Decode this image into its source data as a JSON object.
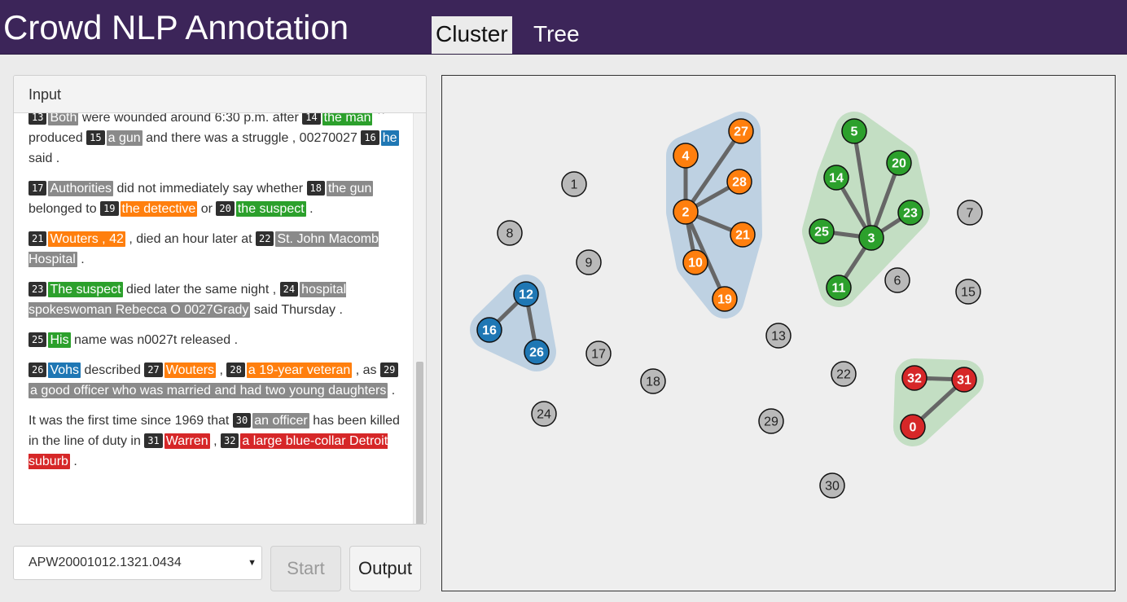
{
  "app": {
    "title": "Crowd NLP Annotation"
  },
  "tabs": [
    {
      "label": "Cluster",
      "active": true
    },
    {
      "label": "Tree",
      "active": false
    }
  ],
  "input_panel": {
    "heading": "Input",
    "paragraphs": [
      [
        {
          "n": "13",
          "t": "Both",
          "c": "gray"
        },
        {
          "s": " were wounded around 6:30 p.m. after "
        },
        {
          "n": "14",
          "t": "the man",
          "c": "green"
        },
        {
          "s": " `` produced "
        },
        {
          "n": "15",
          "t": "a gun",
          "c": "gray"
        },
        {
          "s": " and there was a struggle , 00270027 "
        },
        {
          "n": "16",
          "t": "he",
          "c": "blue"
        },
        {
          "s": " said ."
        }
      ],
      [
        {
          "n": "17",
          "t": "Authorities",
          "c": "gray"
        },
        {
          "s": " did not immediately say whether "
        },
        {
          "n": "18",
          "t": "the gun",
          "c": "gray"
        },
        {
          "s": " belonged to "
        },
        {
          "n": "19",
          "t": "the detective",
          "c": "orange"
        },
        {
          "s": " or "
        },
        {
          "n": "20",
          "t": "the suspect",
          "c": "green"
        },
        {
          "s": " ."
        }
      ],
      [
        {
          "n": "21",
          "t": "Wouters , 42",
          "c": "orange"
        },
        {
          "s": " , died an hour later at "
        },
        {
          "n": "22",
          "t": "St. John Macomb Hospital",
          "c": "gray"
        },
        {
          "s": " ."
        }
      ],
      [
        {
          "n": "23",
          "t": "The suspect",
          "c": "green"
        },
        {
          "s": " died later the same night , "
        },
        {
          "n": "24",
          "t": "hospital spokeswoman Rebecca O 0027Grady",
          "c": "gray"
        },
        {
          "s": " said Thursday ."
        }
      ],
      [
        {
          "n": "25",
          "t": "His",
          "c": "green"
        },
        {
          "s": " name was n0027t released ."
        }
      ],
      [
        {
          "n": "26",
          "t": "Vohs",
          "c": "blue"
        },
        {
          "s": " described "
        },
        {
          "n": "27",
          "t": "Wouters",
          "c": "orange"
        },
        {
          "s": " , "
        },
        {
          "n": "28",
          "t": "a 19-year veteran",
          "c": "orange"
        },
        {
          "s": " , as "
        },
        {
          "n": "29",
          "t": "a good officer who was married and had two young daughters",
          "c": "gray"
        },
        {
          "s": " ."
        }
      ],
      [
        {
          "s": "It was the first time since 1969 that "
        },
        {
          "n": "30",
          "t": "an officer",
          "c": "gray"
        },
        {
          "s": " has been killed in the line of duty in "
        },
        {
          "n": "31",
          "t": "Warren",
          "c": "red"
        },
        {
          "s": " , "
        },
        {
          "n": "32",
          "t": "a large blue-collar Detroit suburb",
          "c": "red"
        },
        {
          "s": " ."
        }
      ]
    ]
  },
  "controls": {
    "document_select": {
      "value": "APW20001012.1321.0434"
    },
    "start_label": "Start",
    "output_label": "Output"
  },
  "colors": {
    "gray": "#8a8a8a",
    "green": "#2ca02c",
    "orange": "#ff7f0e",
    "blue": "#1f77b4",
    "red": "#d62728",
    "gray_node": "#b9b9b9",
    "hull_blue": "#bed1e2",
    "hull_green": "#c3dec3"
  },
  "graph": {
    "nodes": [
      {
        "id": "27",
        "c": "orange"
      },
      {
        "id": "4",
        "c": "orange"
      },
      {
        "id": "28",
        "c": "orange"
      },
      {
        "id": "2",
        "c": "orange"
      },
      {
        "id": "21",
        "c": "orange"
      },
      {
        "id": "10",
        "c": "orange"
      },
      {
        "id": "19",
        "c": "orange"
      },
      {
        "id": "5",
        "c": "green"
      },
      {
        "id": "14",
        "c": "green"
      },
      {
        "id": "20",
        "c": "green"
      },
      {
        "id": "23",
        "c": "green"
      },
      {
        "id": "25",
        "c": "green"
      },
      {
        "id": "3",
        "c": "green"
      },
      {
        "id": "11",
        "c": "green"
      },
      {
        "id": "12",
        "c": "blue"
      },
      {
        "id": "16",
        "c": "blue"
      },
      {
        "id": "26",
        "c": "blue"
      },
      {
        "id": "32",
        "c": "red"
      },
      {
        "id": "31",
        "c": "red"
      },
      {
        "id": "0",
        "c": "red"
      },
      {
        "id": "1",
        "c": "gray"
      },
      {
        "id": "8",
        "c": "gray"
      },
      {
        "id": "9",
        "c": "gray"
      },
      {
        "id": "7",
        "c": "gray"
      },
      {
        "id": "6",
        "c": "gray"
      },
      {
        "id": "15",
        "c": "gray"
      },
      {
        "id": "13",
        "c": "gray"
      },
      {
        "id": "17",
        "c": "gray"
      },
      {
        "id": "18",
        "c": "gray"
      },
      {
        "id": "22",
        "c": "gray"
      },
      {
        "id": "24",
        "c": "gray"
      },
      {
        "id": "29",
        "c": "gray"
      },
      {
        "id": "30",
        "c": "gray"
      }
    ],
    "edges": [
      [
        "2",
        "27"
      ],
      [
        "2",
        "4"
      ],
      [
        "2",
        "28"
      ],
      [
        "2",
        "21"
      ],
      [
        "2",
        "10"
      ],
      [
        "2",
        "19"
      ],
      [
        "3",
        "5"
      ],
      [
        "3",
        "14"
      ],
      [
        "3",
        "20"
      ],
      [
        "3",
        "23"
      ],
      [
        "3",
        "25"
      ],
      [
        "3",
        "11"
      ],
      [
        "12",
        "16"
      ],
      [
        "12",
        "26"
      ],
      [
        "32",
        "31"
      ],
      [
        "31",
        "0"
      ]
    ],
    "clusters": [
      {
        "members": [
          "27",
          "4",
          "28",
          "2",
          "21",
          "10",
          "19"
        ],
        "fill": "hull_blue"
      },
      {
        "members": [
          "5",
          "14",
          "20",
          "23",
          "25",
          "3",
          "11"
        ],
        "fill": "hull_green"
      },
      {
        "members": [
          "12",
          "16",
          "26"
        ],
        "fill": "hull_blue"
      },
      {
        "members": [
          "32",
          "31",
          "0"
        ],
        "fill": "hull_green"
      }
    ]
  }
}
